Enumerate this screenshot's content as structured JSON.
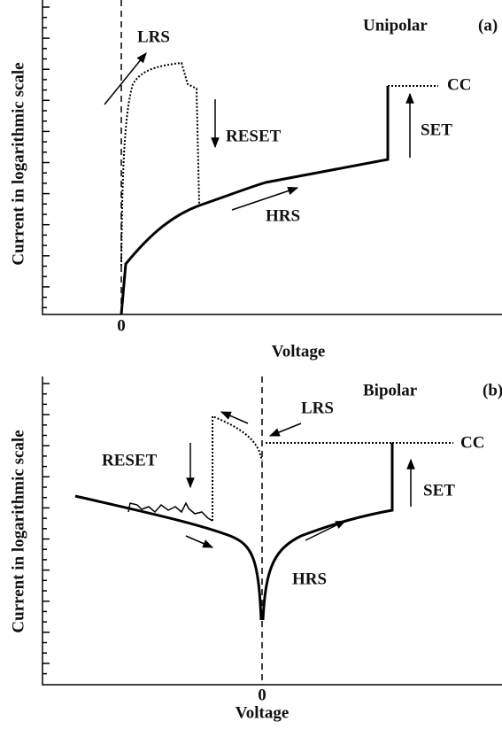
{
  "panel_a": {
    "y_label": "Current in logarithmic scale",
    "mode": "Unipolar",
    "tag": "(a)",
    "lrs": "LRS",
    "reset": "RESET",
    "set": "SET",
    "hrs": "HRS",
    "cc": "CC",
    "zero": "0",
    "x_label": "Voltage"
  },
  "panel_b": {
    "y_label": "Current in logarithmic scale",
    "mode": "Bipolar",
    "tag": "(b)",
    "lrs": "LRS",
    "reset": "RESET",
    "set": "SET",
    "hrs": "HRS",
    "cc": "CC",
    "zero": "0",
    "x_label": "Voltage"
  }
}
